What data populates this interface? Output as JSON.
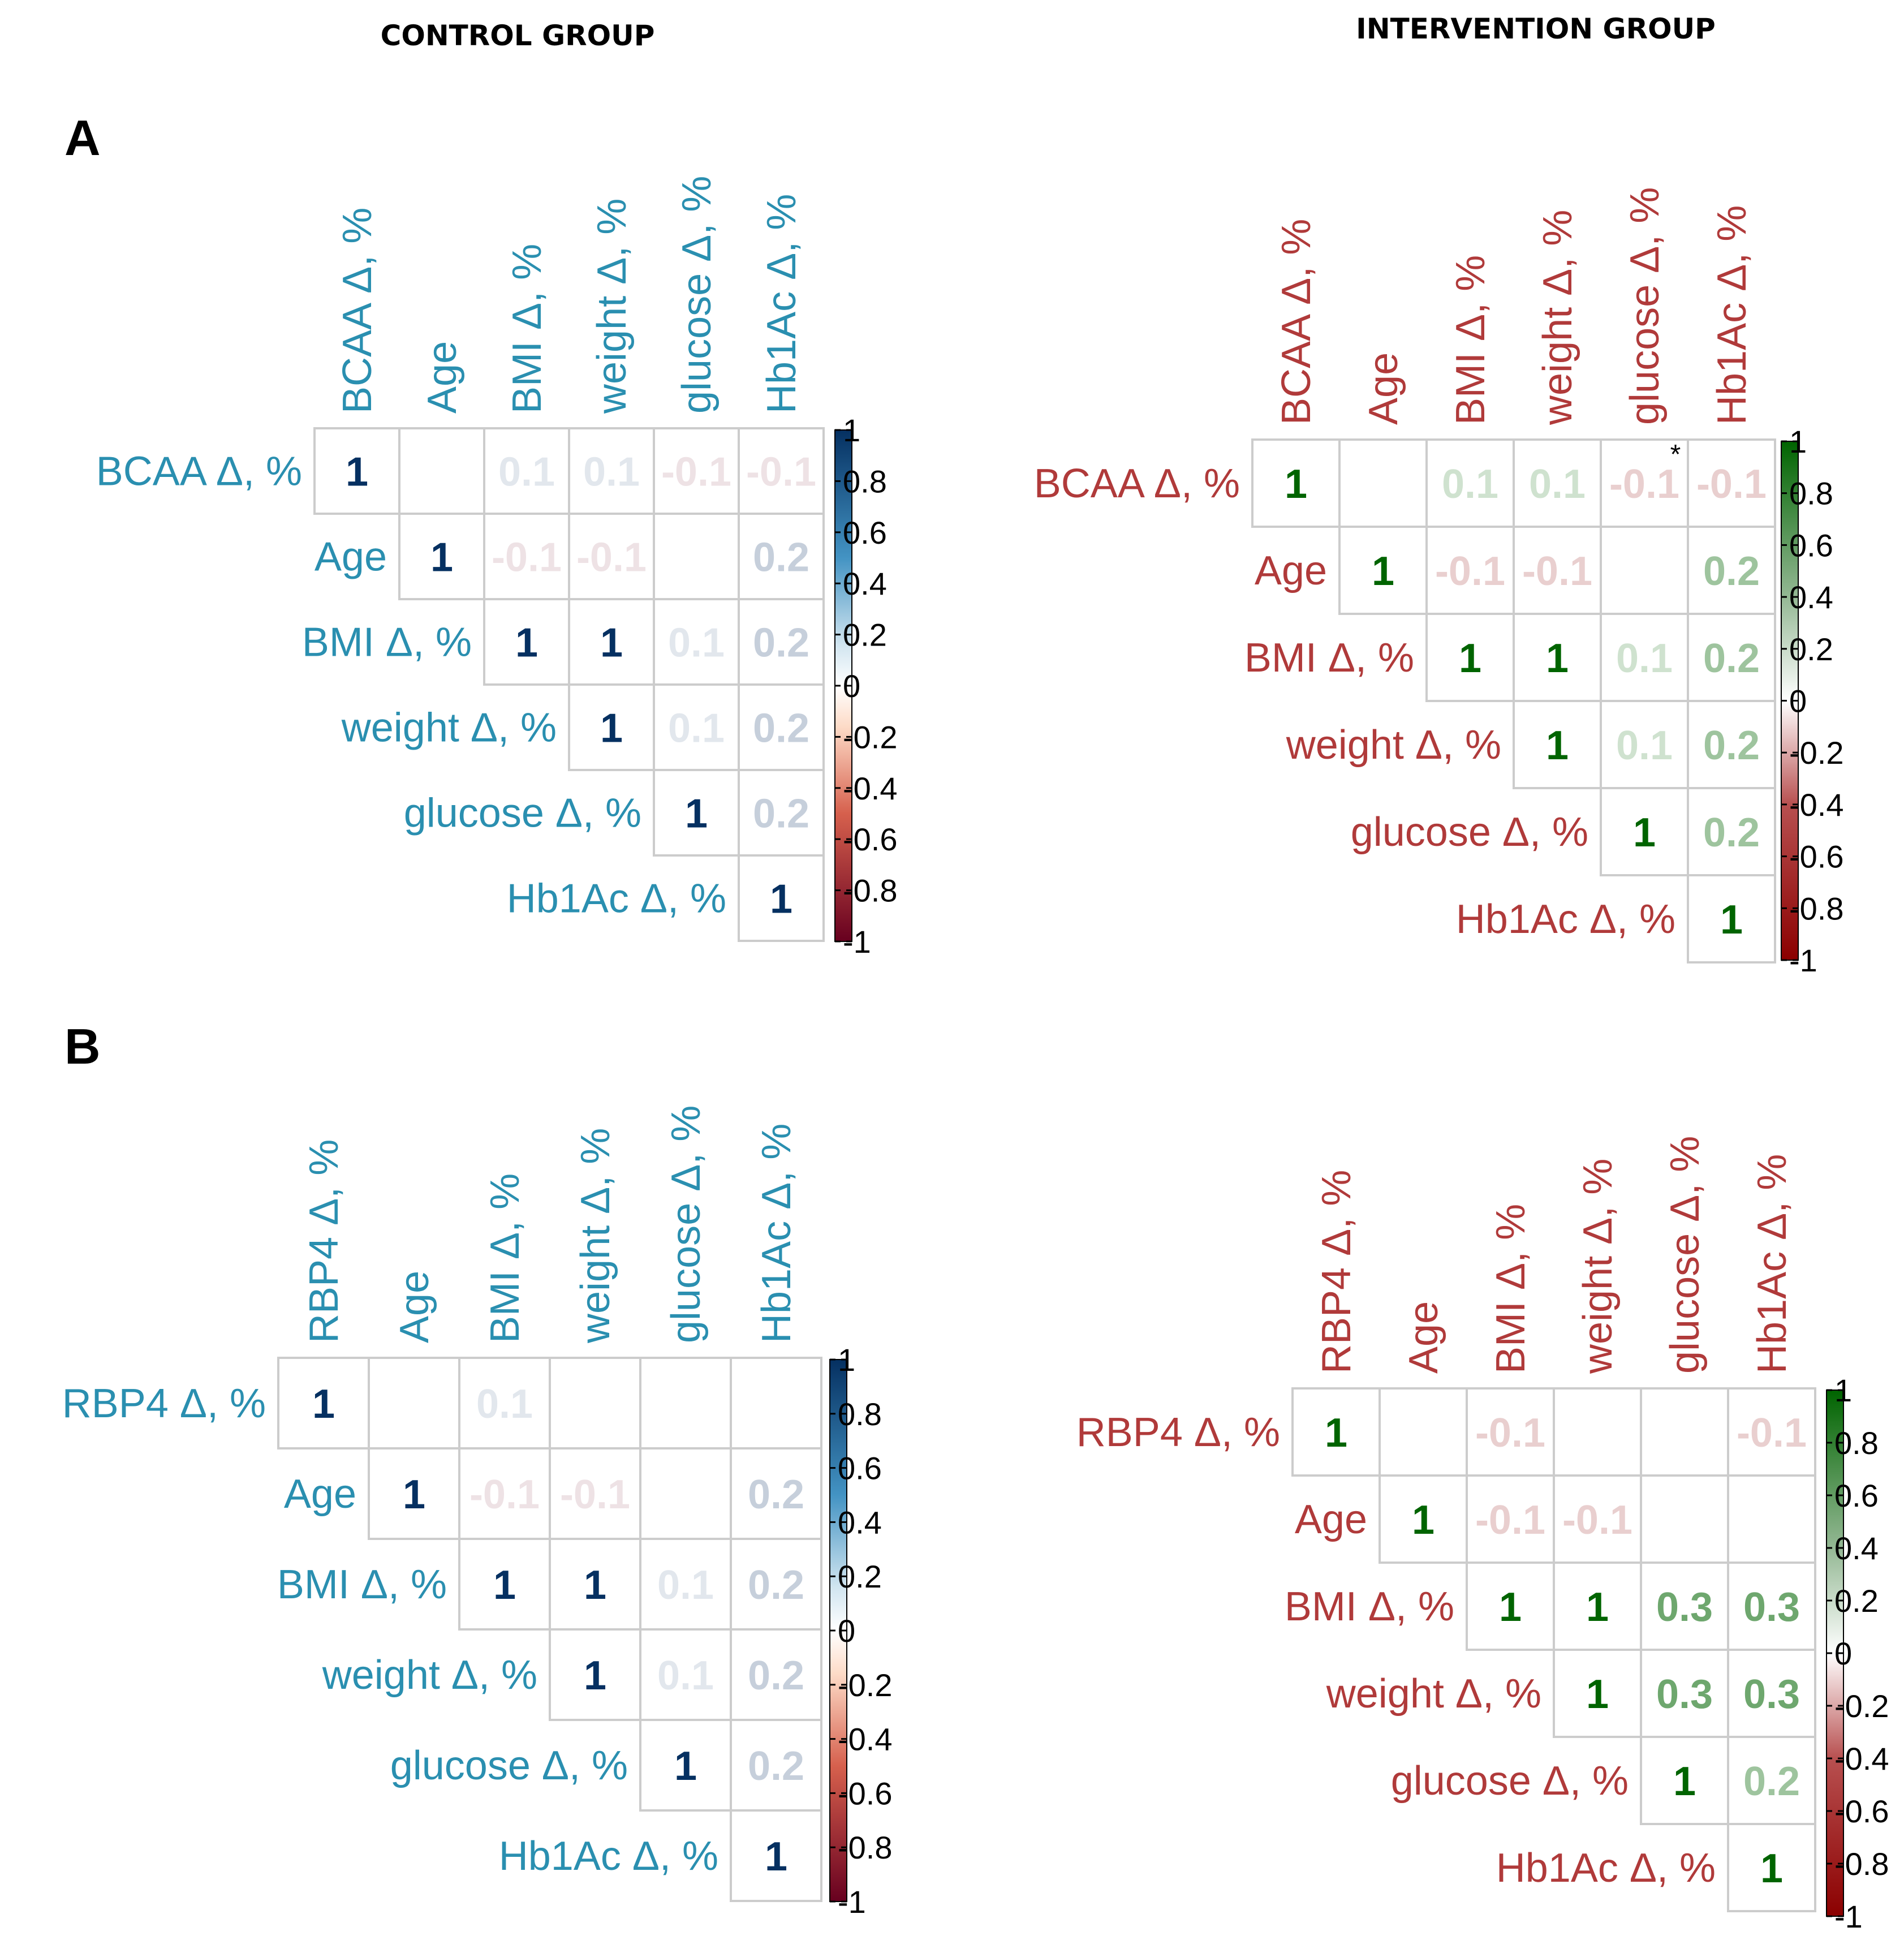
{
  "group_titles": {
    "control": "CONTROL GROUP",
    "intervention": "INTERVENTION GROUP"
  },
  "panel_letters": {
    "a": "A",
    "b": "B"
  },
  "colors": {
    "control_label": "#2a8fb0",
    "intervention_label": "#b03a3a",
    "grid": "#cccccc",
    "control_scale": {
      "neg": "#67001f",
      "mid": "#ffffff",
      "pos": "#053061"
    },
    "intervention_scale": {
      "neg": "#8b0000",
      "mid": "#ffffff",
      "pos": "#006400"
    }
  },
  "chart_data": [
    {
      "id": "A-control",
      "type": "heatmap",
      "panel": "A",
      "group": "CONTROL GROUP",
      "labels": [
        "BCAA Δ, %",
        "Age",
        "BMI Δ, %",
        "weight Δ, %",
        "glucose Δ, %",
        "Hb1Ac Δ, %"
      ],
      "matrix": [
        [
          1,
          0,
          0.1,
          0.1,
          -0.1,
          -0.1
        ],
        [
          null,
          1,
          -0.1,
          -0.1,
          0,
          0.2
        ],
        [
          null,
          null,
          1,
          1,
          0.1,
          0.2
        ],
        [
          null,
          null,
          null,
          1,
          0.1,
          0.2
        ],
        [
          null,
          null,
          null,
          null,
          1,
          0.2
        ],
        [
          null,
          null,
          null,
          null,
          null,
          1
        ]
      ],
      "significant": [],
      "colorbar": {
        "range": [
          -1,
          1
        ],
        "ticks": [
          "-1",
          "-0.8",
          "-0.6",
          "-0.4",
          "-0.2",
          "0",
          "0.2",
          "0.4",
          "0.6",
          "0.8",
          "1"
        ]
      }
    },
    {
      "id": "A-intervention",
      "type": "heatmap",
      "panel": "A",
      "group": "INTERVENTION GROUP",
      "labels": [
        "BCAA Δ, %",
        "Age",
        "BMI Δ, %",
        "weight Δ, %",
        "glucose Δ, %",
        "Hb1Ac Δ, %"
      ],
      "matrix": [
        [
          1,
          0,
          0.1,
          0.1,
          -0.1,
          -0.1
        ],
        [
          null,
          1,
          -0.1,
          -0.1,
          0,
          0.2
        ],
        [
          null,
          null,
          1,
          1,
          0.1,
          0.2
        ],
        [
          null,
          null,
          null,
          1,
          0.1,
          0.2
        ],
        [
          null,
          null,
          null,
          null,
          1,
          0.2
        ],
        [
          null,
          null,
          null,
          null,
          null,
          1
        ]
      ],
      "significant": [
        [
          0,
          4
        ]
      ],
      "significance_mark": "*",
      "colorbar": {
        "range": [
          -1,
          1
        ],
        "ticks": [
          "-1",
          "-0.8",
          "-0.6",
          "-0.4",
          "-0.2",
          "0",
          "0.2",
          "0.4",
          "0.6",
          "0.8",
          "1"
        ]
      }
    },
    {
      "id": "B-control",
      "type": "heatmap",
      "panel": "B",
      "group": "CONTROL GROUP",
      "labels": [
        "RBP4 Δ, %",
        "Age",
        "BMI Δ, %",
        "weight Δ, %",
        "glucose Δ, %",
        "Hb1Ac Δ, %"
      ],
      "matrix": [
        [
          1,
          0,
          0.1,
          0,
          0,
          0
        ],
        [
          null,
          1,
          -0.1,
          -0.1,
          0,
          0.2
        ],
        [
          null,
          null,
          1,
          1,
          0.1,
          0.2
        ],
        [
          null,
          null,
          null,
          1,
          0.1,
          0.2
        ],
        [
          null,
          null,
          null,
          null,
          1,
          0.2
        ],
        [
          null,
          null,
          null,
          null,
          null,
          1
        ]
      ],
      "significant": [],
      "colorbar": {
        "range": [
          -1,
          1
        ],
        "ticks": [
          "-1",
          "-0.8",
          "-0.6",
          "-0.4",
          "-0.2",
          "0",
          "0.2",
          "0.4",
          "0.6",
          "0.8",
          "1"
        ]
      }
    },
    {
      "id": "B-intervention",
      "type": "heatmap",
      "panel": "B",
      "group": "INTERVENTION GROUP",
      "labels": [
        "RBP4 Δ, %",
        "Age",
        "BMI Δ, %",
        "weight Δ, %",
        "glucose Δ, %",
        "Hb1Ac Δ, %"
      ],
      "matrix": [
        [
          1,
          0,
          -0.1,
          0,
          0,
          -0.1
        ],
        [
          null,
          1,
          -0.1,
          -0.1,
          0,
          0
        ],
        [
          null,
          null,
          1,
          1,
          0.3,
          0.3
        ],
        [
          null,
          null,
          null,
          1,
          0.3,
          0.3
        ],
        [
          null,
          null,
          null,
          null,
          1,
          0.2
        ],
        [
          null,
          null,
          null,
          null,
          null,
          1
        ]
      ],
      "significant": [],
      "colorbar": {
        "range": [
          -1,
          1
        ],
        "ticks": [
          "-1",
          "-0.8",
          "-0.6",
          "-0.4",
          "-0.2",
          "0",
          "0.2",
          "0.4",
          "0.6",
          "0.8",
          "1"
        ]
      }
    }
  ]
}
